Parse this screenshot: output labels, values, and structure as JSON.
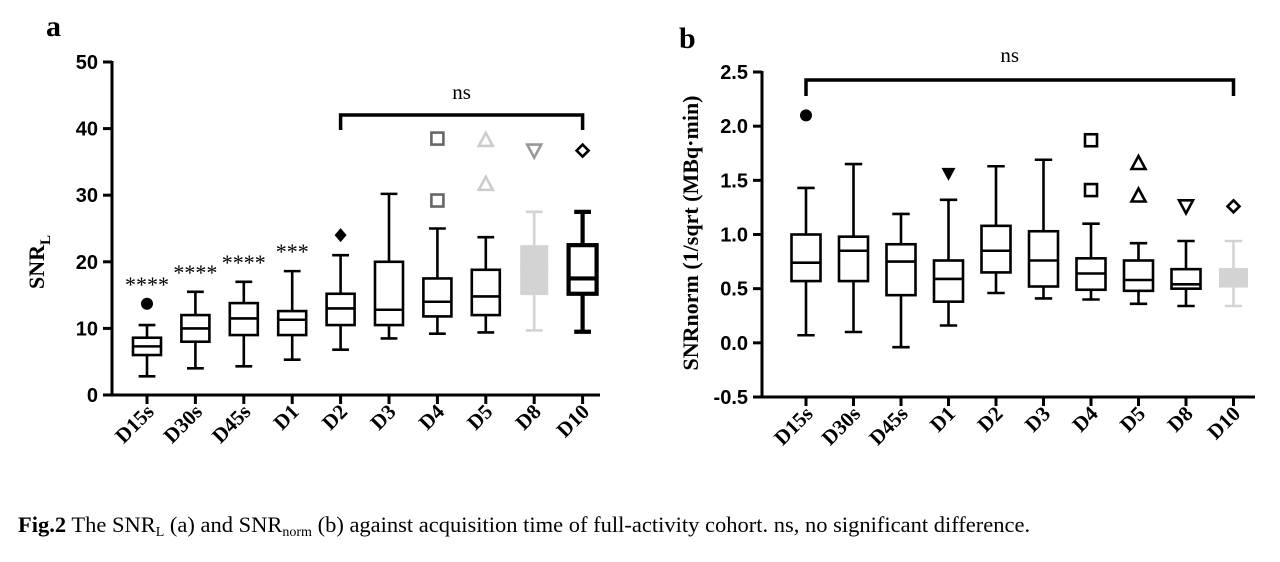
{
  "figure": {
    "caption_label": "Fig.2",
    "caption_part1": " The SNR",
    "caption_sub1": "L",
    "caption_part2": " (a) and SNR",
    "caption_sub2": "norm",
    "caption_part3": " (b) against acquisition time of full-activity cohort. ns, no significant difference."
  },
  "chart_data": [
    {
      "panel": "a",
      "type": "box",
      "ylabel_main": "SNR",
      "ylabel_sub": "L",
      "ylim": [
        0,
        50
      ],
      "yticks": [
        0,
        10,
        20,
        30,
        40,
        50
      ],
      "categories": [
        "D15s",
        "D30s",
        "D45s",
        "D1",
        "D2",
        "D3",
        "D4",
        "D5",
        "D8",
        "D10"
      ],
      "boxes": [
        {
          "min": 2.8,
          "q1": 6.0,
          "median": 7.3,
          "q3": 8.6,
          "max": 10.5,
          "color": "#000000",
          "style": "outline"
        },
        {
          "min": 4.0,
          "q1": 8.0,
          "median": 10.0,
          "q3": 12.0,
          "max": 15.5,
          "color": "#000000",
          "style": "outline"
        },
        {
          "min": 4.3,
          "q1": 9.0,
          "median": 11.5,
          "q3": 13.8,
          "max": 17.0,
          "color": "#000000",
          "style": "outline"
        },
        {
          "min": 5.3,
          "q1": 9.0,
          "median": 11.3,
          "q3": 12.6,
          "max": 18.6,
          "color": "#000000",
          "style": "outline"
        },
        {
          "min": 6.8,
          "q1": 10.5,
          "median": 13.0,
          "q3": 15.2,
          "max": 21.0,
          "color": "#000000",
          "style": "outline"
        },
        {
          "min": 8.5,
          "q1": 10.5,
          "median": 12.8,
          "q3": 20.0,
          "max": 30.2,
          "color": "#000000",
          "style": "outline"
        },
        {
          "min": 9.2,
          "q1": 11.8,
          "median": 14.0,
          "q3": 17.5,
          "max": 25.0,
          "color": "#000000",
          "style": "outline"
        },
        {
          "min": 9.4,
          "q1": 12.0,
          "median": 14.8,
          "q3": 18.8,
          "max": 23.7,
          "color": "#000000",
          "style": "outline"
        },
        {
          "min": 9.7,
          "q1": 15.0,
          "median": 19.0,
          "q3": 22.5,
          "max": 27.5,
          "color": "#d3d3d3",
          "style": "filled"
        },
        {
          "min": 9.5,
          "q1": 15.2,
          "median": 17.5,
          "q3": 22.5,
          "max": 27.5,
          "color": "#000000",
          "style": "bold"
        }
      ],
      "outliers": [
        {
          "cat": 0,
          "y": 13.7,
          "marker": "circle",
          "color": "#000000"
        },
        {
          "cat": 4,
          "y": 24.0,
          "marker": "diamond",
          "color": "#000000"
        },
        {
          "cat": 6,
          "y": 38.5,
          "marker": "square-open",
          "color": "#666666"
        },
        {
          "cat": 6,
          "y": 29.2,
          "marker": "square-open",
          "color": "#666666"
        },
        {
          "cat": 7,
          "y": 38.3,
          "marker": "triangle-up-open",
          "color": "#cccccc"
        },
        {
          "cat": 7,
          "y": 31.7,
          "marker": "triangle-up-open",
          "color": "#cccccc"
        },
        {
          "cat": 8,
          "y": 36.7,
          "marker": "triangle-down-open",
          "color": "#999999"
        },
        {
          "cat": 9,
          "y": 36.7,
          "marker": "diamond-open",
          "color": "#000000"
        }
      ],
      "significance_marks": [
        "****",
        "****",
        "****",
        "***"
      ],
      "bracket": {
        "from": 4,
        "to": 9,
        "label": "ns"
      }
    },
    {
      "panel": "b",
      "type": "box",
      "ylabel": "SNRnorm (1/sqrt (MBq·min)",
      "ylim": [
        -0.5,
        2.5
      ],
      "yticks": [
        -0.5,
        0.0,
        0.5,
        1.0,
        1.5,
        2.0,
        2.5
      ],
      "ytick_labels": [
        "-0.5",
        "0.0",
        "0.5",
        "1.0",
        "1.5",
        "2.0",
        "2.5"
      ],
      "categories": [
        "D15s",
        "D30s",
        "D45s",
        "D1",
        "D2",
        "D3",
        "D4",
        "D5",
        "D8",
        "D10"
      ],
      "boxes": [
        {
          "min": 0.07,
          "q1": 0.57,
          "median": 0.74,
          "q3": 1.0,
          "max": 1.43,
          "color": "#000000",
          "style": "outline"
        },
        {
          "min": 0.1,
          "q1": 0.57,
          "median": 0.85,
          "q3": 0.98,
          "max": 1.65,
          "color": "#000000",
          "style": "outline"
        },
        {
          "min": -0.04,
          "q1": 0.44,
          "median": 0.75,
          "q3": 0.91,
          "max": 1.19,
          "color": "#000000",
          "style": "outline"
        },
        {
          "min": 0.16,
          "q1": 0.38,
          "median": 0.59,
          "q3": 0.76,
          "max": 1.32,
          "color": "#000000",
          "style": "outline"
        },
        {
          "min": 0.46,
          "q1": 0.65,
          "median": 0.85,
          "q3": 1.08,
          "max": 1.63,
          "color": "#000000",
          "style": "outline"
        },
        {
          "min": 0.41,
          "q1": 0.52,
          "median": 0.76,
          "q3": 1.03,
          "max": 1.69,
          "color": "#000000",
          "style": "outline"
        },
        {
          "min": 0.4,
          "q1": 0.49,
          "median": 0.64,
          "q3": 0.78,
          "max": 1.1,
          "color": "#000000",
          "style": "outline"
        },
        {
          "min": 0.36,
          "q1": 0.48,
          "median": 0.58,
          "q3": 0.76,
          "max": 0.92,
          "color": "#000000",
          "style": "outline"
        },
        {
          "min": 0.34,
          "q1": 0.5,
          "median": 0.54,
          "q3": 0.68,
          "max": 0.94,
          "color": "#000000",
          "style": "outline"
        },
        {
          "min": 0.34,
          "q1": 0.51,
          "median": 0.6,
          "q3": 0.69,
          "max": 0.94,
          "color": "#d3d3d3",
          "style": "filled"
        }
      ],
      "outliers": [
        {
          "cat": 0,
          "y": 2.1,
          "marker": "circle",
          "color": "#000000"
        },
        {
          "cat": 3,
          "y": 1.56,
          "marker": "triangle-down",
          "color": "#000000"
        },
        {
          "cat": 6,
          "y": 1.87,
          "marker": "square-open",
          "color": "#000000"
        },
        {
          "cat": 6,
          "y": 1.41,
          "marker": "square-open",
          "color": "#000000"
        },
        {
          "cat": 7,
          "y": 1.66,
          "marker": "triangle-up-open",
          "color": "#000000"
        },
        {
          "cat": 7,
          "y": 1.36,
          "marker": "triangle-up-open",
          "color": "#000000"
        },
        {
          "cat": 8,
          "y": 1.26,
          "marker": "triangle-down-open",
          "color": "#000000"
        },
        {
          "cat": 9,
          "y": 1.26,
          "marker": "diamond-open",
          "color": "#000000"
        }
      ],
      "bracket": {
        "from": 0,
        "to": 9,
        "label": "ns"
      }
    }
  ]
}
